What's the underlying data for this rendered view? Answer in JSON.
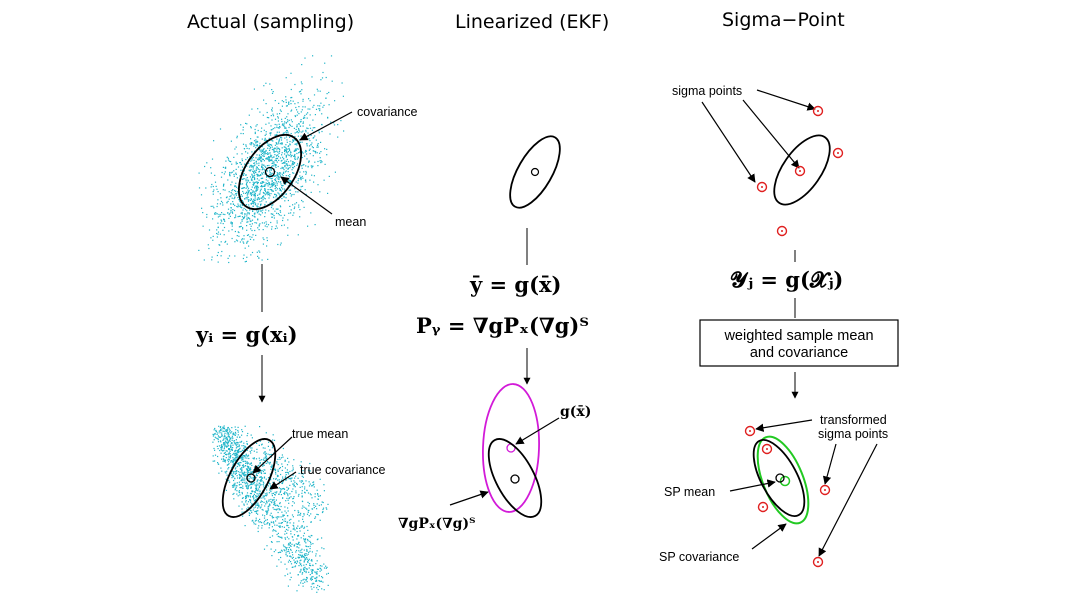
{
  "panels": {
    "actual": {
      "title": "Actual (sampling)",
      "covariance_label": "covariance",
      "mean_label": "mean",
      "equation": "yᵢ = g(xᵢ)",
      "true_mean_label": "true mean",
      "true_covariance_label": "true covariance"
    },
    "linearized": {
      "title": "Linearized (EKF)",
      "equation_mean": "ȳ = g(x̄)",
      "equation_cov": "Pᵧ = ∇gPₓ(∇g)ᵀ",
      "g_xbar_label": "g(x̄)",
      "jacobian_label": "∇gPₓ(∇g)ᵀ"
    },
    "sigma_point": {
      "title": "Sigma−Point",
      "sigma_points_label": "sigma points",
      "equation": "𝓨ⱼ = g(𝓧ⱼ)",
      "box_line1": "weighted sample mean",
      "box_line2": "and covariance",
      "transformed_label_line1": "transformed",
      "transformed_label_line2": "sigma points",
      "sp_mean_label": "SP mean",
      "sp_covariance_label": "SP covariance"
    }
  },
  "colors": {
    "samples": "#1fb5c9",
    "sigma": "#e02020",
    "ekf_transformed": "#d21ad8",
    "sp_covariance": "#22c922",
    "ink": "#000000"
  }
}
